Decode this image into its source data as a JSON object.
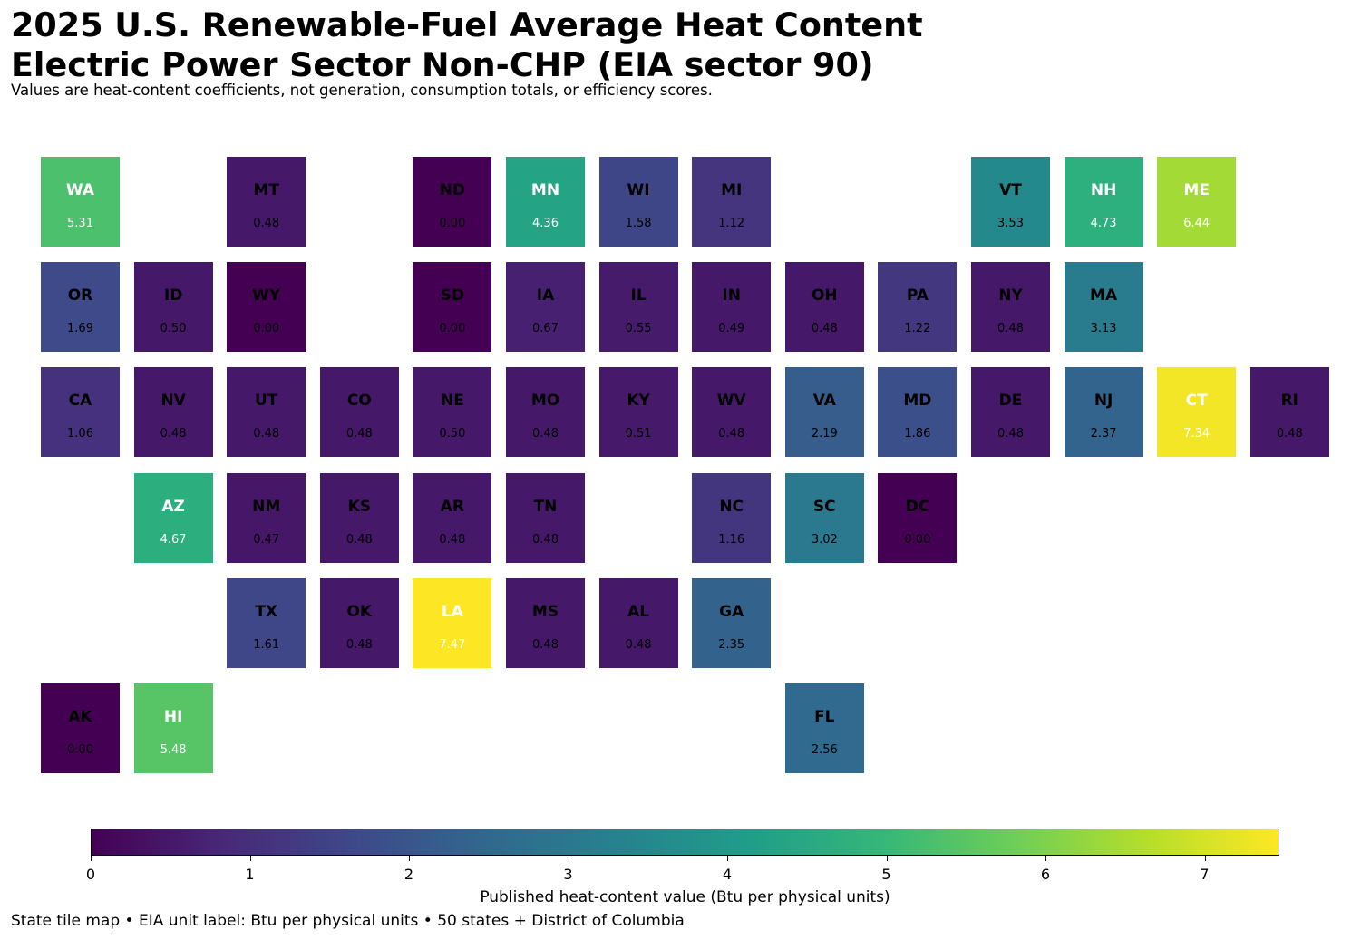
{
  "title": {
    "line1": "2025 U.S. Renewable-Fuel Average Heat Content",
    "line2": "Electric Power Sector Non-CHP (EIA sector 90)"
  },
  "subtitle": "Values are heat-content coefficients, not generation, consumption totals, or efficiency scores.",
  "colorbar": {
    "label": "Published heat-content value (Btu per physical units)",
    "ticks": [
      "0",
      "1",
      "2",
      "3",
      "4",
      "5",
      "6",
      "7"
    ],
    "min": 0,
    "max": 7.47,
    "colormap": [
      "#440154",
      "#482878",
      "#3e4989",
      "#31688e",
      "#26828e",
      "#1f9e89",
      "#35b779",
      "#6ece58",
      "#b5de2b",
      "#fde725"
    ]
  },
  "footer": "State tile map • EIA unit label: Btu per physical units • 50 states + District of Columbia",
  "chart_data": {
    "type": "heatmap",
    "grid_columns": 14,
    "grid_rows": 6,
    "cells": [
      {
        "state": "WA",
        "value": 5.31,
        "label": "5.31",
        "row": 0,
        "col": 0
      },
      {
        "state": "MT",
        "value": 0.48,
        "label": "0.48",
        "row": 0,
        "col": 2
      },
      {
        "state": "ND",
        "value": 0.0,
        "label": "0.00",
        "row": 0,
        "col": 4
      },
      {
        "state": "MN",
        "value": 4.36,
        "label": "4.36",
        "row": 0,
        "col": 5
      },
      {
        "state": "WI",
        "value": 1.58,
        "label": "1.58",
        "row": 0,
        "col": 6
      },
      {
        "state": "MI",
        "value": 1.12,
        "label": "1.12",
        "row": 0,
        "col": 7
      },
      {
        "state": "VT",
        "value": 3.53,
        "label": "3.53",
        "row": 0,
        "col": 10
      },
      {
        "state": "NH",
        "value": 4.73,
        "label": "4.73",
        "row": 0,
        "col": 11
      },
      {
        "state": "ME",
        "value": 6.44,
        "label": "6.44",
        "row": 0,
        "col": 12
      },
      {
        "state": "OR",
        "value": 1.69,
        "label": "1.69",
        "row": 1,
        "col": 0
      },
      {
        "state": "ID",
        "value": 0.5,
        "label": "0.50",
        "row": 1,
        "col": 1
      },
      {
        "state": "WY",
        "value": 0.0,
        "label": "0.00",
        "row": 1,
        "col": 2
      },
      {
        "state": "SD",
        "value": 0.0,
        "label": "0.00",
        "row": 1,
        "col": 4
      },
      {
        "state": "IA",
        "value": 0.67,
        "label": "0.67",
        "row": 1,
        "col": 5
      },
      {
        "state": "IL",
        "value": 0.55,
        "label": "0.55",
        "row": 1,
        "col": 6
      },
      {
        "state": "IN",
        "value": 0.49,
        "label": "0.49",
        "row": 1,
        "col": 7
      },
      {
        "state": "OH",
        "value": 0.48,
        "label": "0.48",
        "row": 1,
        "col": 8
      },
      {
        "state": "PA",
        "value": 1.22,
        "label": "1.22",
        "row": 1,
        "col": 9
      },
      {
        "state": "NY",
        "value": 0.48,
        "label": "0.48",
        "row": 1,
        "col": 10
      },
      {
        "state": "MA",
        "value": 3.13,
        "label": "3.13",
        "row": 1,
        "col": 11
      },
      {
        "state": "CA",
        "value": 1.06,
        "label": "1.06",
        "row": 2,
        "col": 0
      },
      {
        "state": "NV",
        "value": 0.48,
        "label": "0.48",
        "row": 2,
        "col": 1
      },
      {
        "state": "UT",
        "value": 0.48,
        "label": "0.48",
        "row": 2,
        "col": 2
      },
      {
        "state": "CO",
        "value": 0.48,
        "label": "0.48",
        "row": 2,
        "col": 3
      },
      {
        "state": "NE",
        "value": 0.5,
        "label": "0.50",
        "row": 2,
        "col": 4
      },
      {
        "state": "MO",
        "value": 0.48,
        "label": "0.48",
        "row": 2,
        "col": 5
      },
      {
        "state": "KY",
        "value": 0.51,
        "label": "0.51",
        "row": 2,
        "col": 6
      },
      {
        "state": "WV",
        "value": 0.48,
        "label": "0.48",
        "row": 2,
        "col": 7
      },
      {
        "state": "VA",
        "value": 2.19,
        "label": "2.19",
        "row": 2,
        "col": 8
      },
      {
        "state": "MD",
        "value": 1.86,
        "label": "1.86",
        "row": 2,
        "col": 9
      },
      {
        "state": "DE",
        "value": 0.48,
        "label": "0.48",
        "row": 2,
        "col": 10
      },
      {
        "state": "NJ",
        "value": 2.37,
        "label": "2.37",
        "row": 2,
        "col": 11
      },
      {
        "state": "CT",
        "value": 7.34,
        "label": "7.34",
        "row": 2,
        "col": 12
      },
      {
        "state": "RI",
        "value": 0.48,
        "label": "0.48",
        "row": 2,
        "col": 13
      },
      {
        "state": "AZ",
        "value": 4.67,
        "label": "4.67",
        "row": 3,
        "col": 1
      },
      {
        "state": "NM",
        "value": 0.47,
        "label": "0.47",
        "row": 3,
        "col": 2
      },
      {
        "state": "KS",
        "value": 0.48,
        "label": "0.48",
        "row": 3,
        "col": 3
      },
      {
        "state": "AR",
        "value": 0.48,
        "label": "0.48",
        "row": 3,
        "col": 4
      },
      {
        "state": "TN",
        "value": 0.48,
        "label": "0.48",
        "row": 3,
        "col": 5
      },
      {
        "state": "NC",
        "value": 1.16,
        "label": "1.16",
        "row": 3,
        "col": 7
      },
      {
        "state": "SC",
        "value": 3.02,
        "label": "3.02",
        "row": 3,
        "col": 8
      },
      {
        "state": "DC",
        "value": 0.0,
        "label": "0.00",
        "row": 3,
        "col": 9
      },
      {
        "state": "TX",
        "value": 1.61,
        "label": "1.61",
        "row": 4,
        "col": 2
      },
      {
        "state": "OK",
        "value": 0.48,
        "label": "0.48",
        "row": 4,
        "col": 3
      },
      {
        "state": "LA",
        "value": 7.47,
        "label": "7.47",
        "row": 4,
        "col": 4
      },
      {
        "state": "MS",
        "value": 0.48,
        "label": "0.48",
        "row": 4,
        "col": 5
      },
      {
        "state": "AL",
        "value": 0.48,
        "label": "0.48",
        "row": 4,
        "col": 6
      },
      {
        "state": "GA",
        "value": 2.35,
        "label": "2.35",
        "row": 4,
        "col": 7
      },
      {
        "state": "AK",
        "value": 0.0,
        "label": "0.00",
        "row": 5,
        "col": 0
      },
      {
        "state": "HI",
        "value": 5.48,
        "label": "5.48",
        "row": 5,
        "col": 1
      },
      {
        "state": "FL",
        "value": 2.56,
        "label": "2.56",
        "row": 5,
        "col": 8
      }
    ]
  }
}
